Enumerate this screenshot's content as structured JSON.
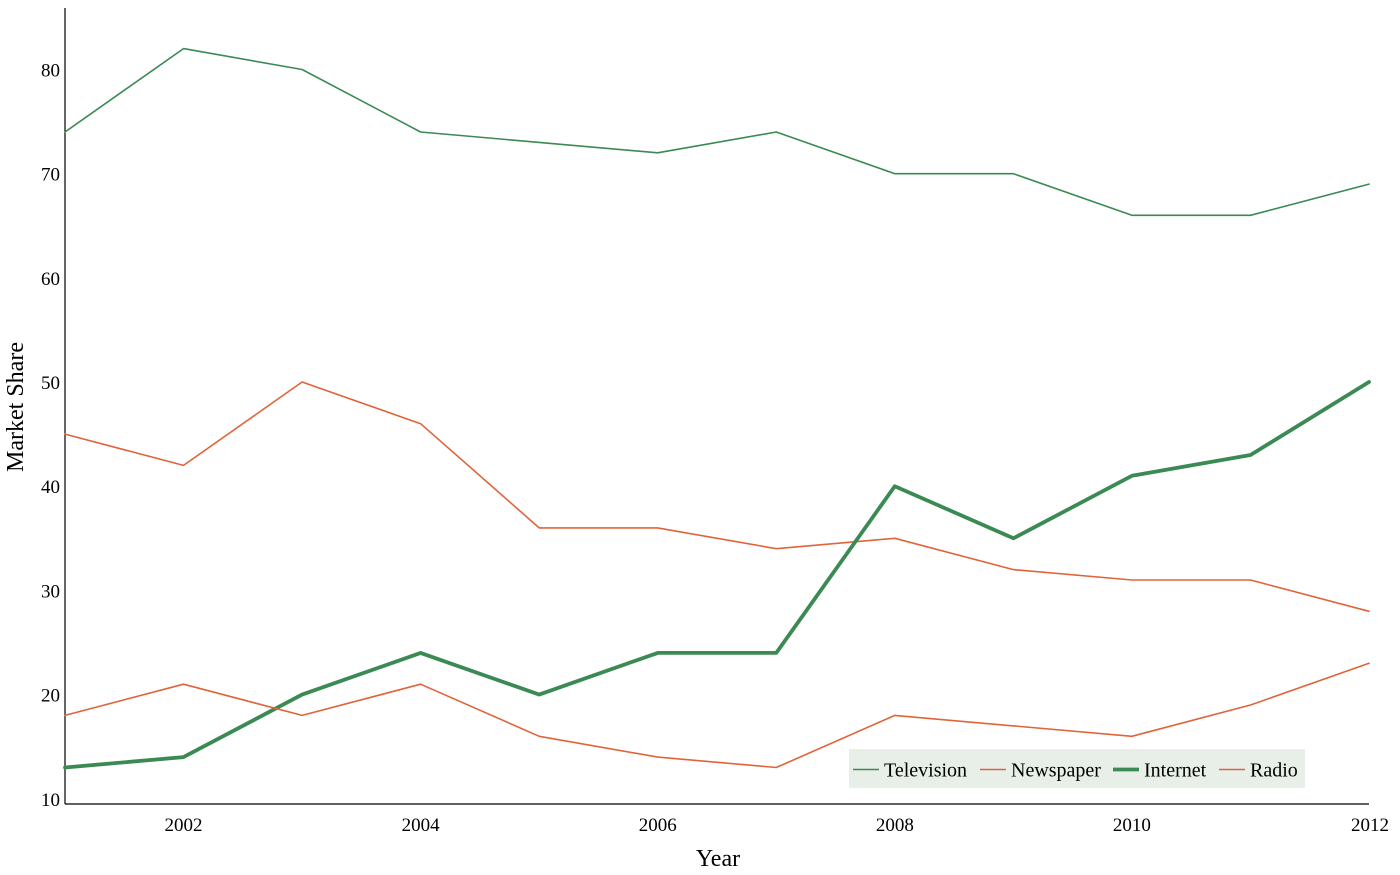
{
  "chart_data": {
    "type": "line",
    "title": "",
    "xlabel": "Year",
    "ylabel": "Market Share",
    "x": [
      2001,
      2002,
      2003,
      2004,
      2005,
      2006,
      2007,
      2008,
      2009,
      2010,
      2011,
      2012
    ],
    "xlim": [
      2001,
      2012
    ],
    "ylim": [
      9.5,
      85.9
    ],
    "xticks": [
      2002,
      2004,
      2006,
      2008,
      2010,
      2012
    ],
    "yticks": [
      10,
      20,
      30,
      40,
      50,
      60,
      70,
      80
    ],
    "grid": false,
    "legend_position": "bottom-right",
    "legend_background": "#e8efe8",
    "series": [
      {
        "name": "Television",
        "color": "#3b8a54",
        "width": "thin",
        "values": [
          74,
          82,
          80,
          74,
          73,
          72,
          74,
          70,
          70,
          66,
          66,
          69
        ]
      },
      {
        "name": "Newspaper",
        "color": "#e0643a",
        "width": "thin",
        "values": [
          45,
          42,
          50,
          46,
          36,
          36,
          34,
          35,
          32,
          31,
          31,
          28
        ]
      },
      {
        "name": "Internet",
        "color": "#3b8a54",
        "width": "thick",
        "values": [
          13,
          14,
          20,
          24,
          20,
          24,
          24,
          40,
          35,
          41,
          43,
          50
        ]
      },
      {
        "name": "Radio",
        "color": "#e0643a",
        "width": "thin",
        "values": [
          18,
          21,
          18,
          21,
          16,
          14,
          13,
          18,
          17,
          16,
          19,
          23
        ]
      }
    ]
  }
}
